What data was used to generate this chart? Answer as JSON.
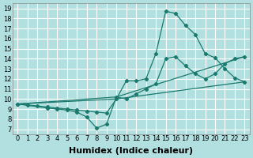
{
  "background_color": "#b2e0e0",
  "grid_color": "#ffffff",
  "line_color": "#1a7a6e",
  "line_color2": "#1a7a6e",
  "xlabel": "Humidex (Indice chaleur)",
  "xlabel_fontsize": 8,
  "xlim": [
    -0.5,
    23.5
  ],
  "ylim": [
    6.5,
    19.5
  ],
  "xticks": [
    0,
    1,
    2,
    3,
    4,
    5,
    6,
    7,
    8,
    9,
    10,
    11,
    12,
    13,
    14,
    15,
    16,
    17,
    18,
    19,
    20,
    21,
    22,
    23
  ],
  "yticks": [
    7,
    8,
    9,
    10,
    11,
    12,
    13,
    14,
    15,
    16,
    17,
    18,
    19
  ],
  "tick_fontsize": 6,
  "line1_x": [
    0,
    1,
    2,
    3,
    4,
    5,
    6,
    7,
    8,
    9,
    10,
    11,
    12,
    13,
    14,
    15,
    16,
    17,
    18,
    19,
    20,
    21,
    22,
    23
  ],
  "line1_y": [
    9.5,
    9.4,
    9.3,
    9.2,
    9.1,
    9.0,
    8.9,
    8.8,
    8.7,
    8.6,
    10.0,
    11.8,
    11.8,
    12.0,
    14.5,
    18.7,
    18.5,
    17.3,
    16.4,
    14.5,
    14.1,
    13.0,
    12.1,
    11.7
  ],
  "line2_x": [
    0,
    3,
    4,
    5,
    6,
    7,
    8,
    9,
    10,
    11,
    12,
    13,
    14,
    15,
    16,
    17,
    18,
    19,
    20,
    21,
    22,
    23
  ],
  "line2_y": [
    9.5,
    9.1,
    9.0,
    8.9,
    8.7,
    8.2,
    7.1,
    7.5,
    10.2,
    10.0,
    10.5,
    11.0,
    11.5,
    14.0,
    14.2,
    13.3,
    12.5,
    12.0,
    12.5,
    13.5,
    14.0,
    14.2
  ],
  "line3_x": [
    0,
    10,
    23
  ],
  "line3_y": [
    9.5,
    10.0,
    11.7
  ],
  "line4_x": [
    0,
    10,
    23
  ],
  "line4_y": [
    9.5,
    10.2,
    14.2
  ]
}
